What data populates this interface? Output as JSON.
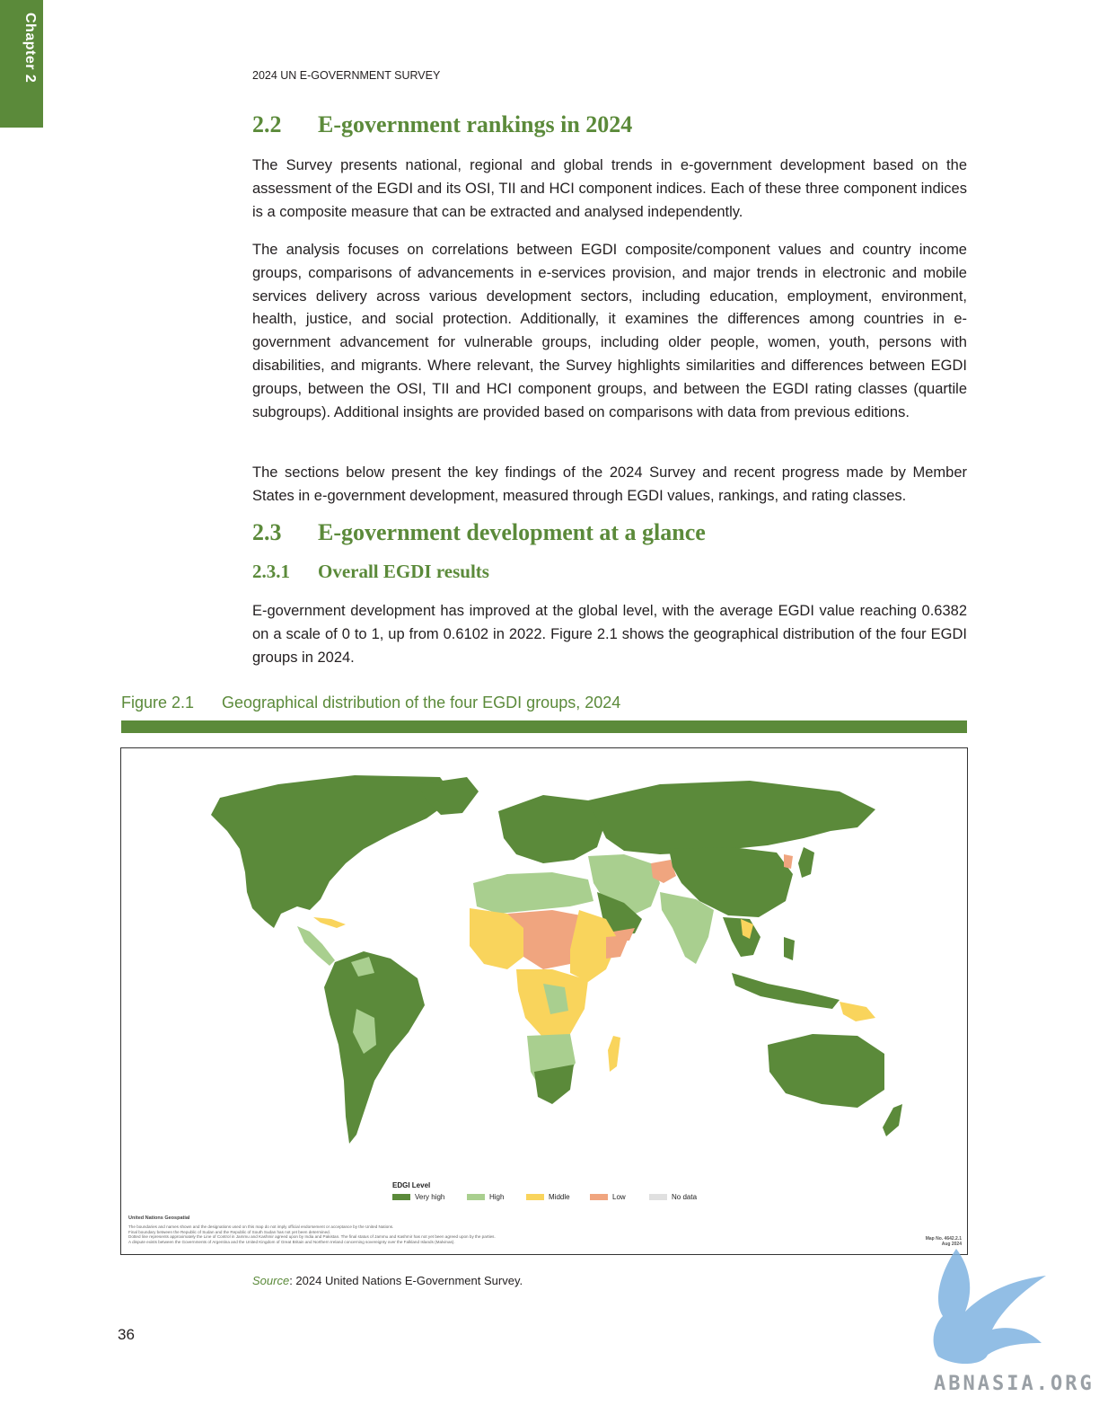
{
  "chapter_tab": "Chapter 2",
  "running_head": "2024 UN E-GOVERNMENT SURVEY",
  "section_2_2": {
    "number": "2.2",
    "title": "E-government rankings in 2024"
  },
  "paragraphs_2_2": [
    "The Survey presents national, regional and global trends in e-government development based on the assessment of the EGDI and its OSI, TII and HCI component indices. Each of these three component indices is a composite measure that can be extracted and analysed independently.",
    "The analysis focuses on correlations between EGDI composite/component values and country income groups, comparisons of advancements in e-services provision, and major trends in electronic and mobile services delivery across various development sectors, including education, employment, environment, health, justice, and social protection. Additionally, it examines the differences among countries in e-government advancement for vulnerable groups, including older people, women, youth, persons with disabilities, and migrants. Where relevant, the Survey highlights similarities and differences between EGDI groups, between the OSI, TII and HCI component groups, and between the EGDI rating classes (quartile subgroups). Additional insights are provided based on comparisons with data from previous editions.",
    "The sections below present the key findings of the 2024 Survey and recent progress made by Member States in e-government development, measured through EGDI values, rankings, and rating classes."
  ],
  "section_2_3": {
    "number": "2.3",
    "title": "E-government development at a glance"
  },
  "section_2_3_1": {
    "number": "2.3.1",
    "title": "Overall EGDI results"
  },
  "paragraph_2_3_1": "E-government development has improved at the global level, with the average EGDI value reaching 0.6382 on a scale of 0 to 1, up from 0.6102 in 2022. Figure 2.1 shows the geographical distribution of the four EGDI groups in 2024.",
  "figure": {
    "number": "Figure 2.1",
    "title": "Geographical distribution of the four EGDI groups, 2024",
    "legend_title": "EDGI Level",
    "legend": [
      {
        "label": "Very high",
        "color": "#5b8a3a"
      },
      {
        "label": "High",
        "color": "#a9cf8f"
      },
      {
        "label": "Middle",
        "color": "#f9d45c"
      },
      {
        "label": "Low",
        "color": "#f0a57f"
      },
      {
        "label": "No data",
        "color": "#e0e0e0"
      }
    ],
    "map_org": "United Nations Geospatial",
    "map_notes": [
      "The boundaries and names shown and the designations used on this map do not imply official endorsement or acceptance by the United Nations.",
      "Final boundary between the Republic of Sudan and the Republic of South Sudan has not yet been determined.",
      "Dotted line represents approximately the Line of Control in Jammu and Kashmir agreed upon by India and Pakistan. The final status of Jammu and Kashmir has not yet been agreed upon by the parties.",
      "A dispute exists between the Governments of Argentina and the United Kingdom of Great Britain and Northern Ireland concerning sovereignty over the Falkland Islands (Malvinas)."
    ],
    "map_number": "Map No. 4642.2.1",
    "map_date": "Aug 2024"
  },
  "source_label": "Source",
  "source_text": ": 2024 United Nations E-Government Survey.",
  "page_number": "36",
  "watermark": "ABNASIA.ORG"
}
